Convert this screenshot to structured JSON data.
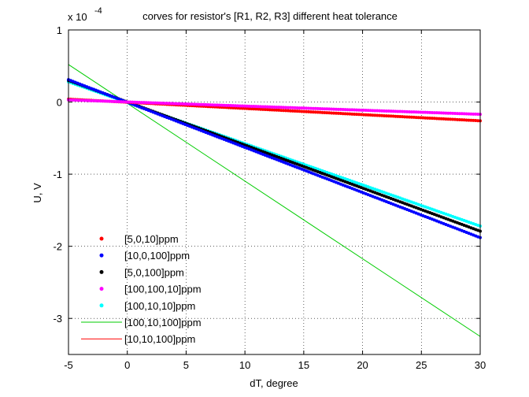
{
  "chart_data": {
    "type": "line",
    "title": "corves for resistor's  [R1, R2, R3]  different heat tolerance",
    "xlabel": "dT, degree",
    "ylabel": "U, V",
    "y_exponent_label": "x 10",
    "y_exponent_power": "-4",
    "xlim": [
      -5,
      30
    ],
    "ylim": [
      -3.5,
      1
    ],
    "y_scale_factor": 0.0001,
    "grid": true,
    "legend_position": "bottom-left",
    "x_ticks": [
      "-5",
      "0",
      "5",
      "10",
      "15",
      "20",
      "25",
      "30"
    ],
    "y_ticks": [
      "1",
      "0",
      "-1",
      "-2",
      "-3"
    ],
    "x_tick_values": [
      -5,
      0,
      5,
      10,
      15,
      20,
      25,
      30
    ],
    "y_tick_values": [
      1,
      0,
      -1,
      -2,
      -3
    ],
    "series": [
      {
        "name": "[5,0,10]ppm",
        "color": "#ff0000",
        "style": "dots",
        "x": [
          -5,
          30
        ],
        "y": [
          0.04,
          -0.26
        ]
      },
      {
        "name": "[10,0,100]ppm",
        "color": "#0000ff",
        "style": "dots",
        "x": [
          -5,
          30
        ],
        "y": [
          0.31,
          -1.88
        ]
      },
      {
        "name": "[5,0,100]ppm",
        "color": "#000000",
        "style": "dots",
        "x": [
          -5,
          30
        ],
        "y": [
          0.3,
          -1.79
        ]
      },
      {
        "name": "[100,100,10]ppm",
        "color": "#ff00ff",
        "style": "dots",
        "x": [
          -5,
          30
        ],
        "y": [
          0.03,
          -0.17
        ]
      },
      {
        "name": "[100,10,10]ppm",
        "color": "#00ffff",
        "style": "dots",
        "x": [
          -5,
          30
        ],
        "y": [
          0.28,
          -1.72
        ]
      },
      {
        "name": "[100,10,100]ppm",
        "color": "#00cc00",
        "style": "line",
        "x": [
          -5,
          30
        ],
        "y": [
          0.52,
          -3.25
        ]
      },
      {
        "name": "[10,10,100]ppm",
        "color": "#ff0000",
        "style": "line",
        "x": [
          -5,
          30
        ],
        "y": [
          0.04,
          -0.26
        ]
      }
    ]
  }
}
